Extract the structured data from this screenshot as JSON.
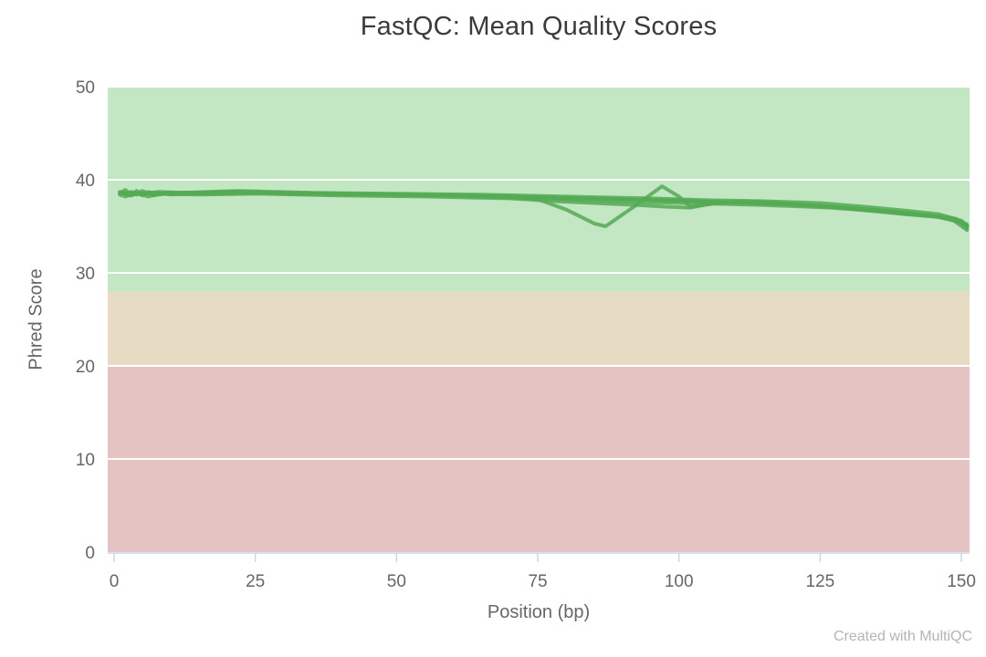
{
  "chart_data": {
    "type": "line",
    "title": "FastQC: Mean Quality Scores",
    "xlabel": "Position (bp)",
    "ylabel": "Phred Score",
    "xlim": [
      0,
      151.5
    ],
    "ylim": [
      0,
      50
    ],
    "xticks": [
      0,
      25,
      50,
      75,
      100,
      125,
      150
    ],
    "yticks": [
      0,
      10,
      20,
      30,
      40,
      50
    ],
    "grid": "horizontal-white",
    "legend": "none",
    "bands": [
      {
        "from": 0,
        "to": 20,
        "color": "#e6c3c3",
        "meaning": "fail"
      },
      {
        "from": 20,
        "to": 28,
        "color": "#e6dcc3",
        "meaning": "warn"
      },
      {
        "from": 28,
        "to": 50,
        "color": "#c3e6c3",
        "meaning": "pass"
      }
    ],
    "line_color": "#55aa55",
    "axis_color": "#ccd6eb",
    "series": [
      {
        "points": [
          [
            1,
            38.6
          ],
          [
            2,
            38.9
          ],
          [
            3,
            38.3
          ],
          [
            4,
            38.8
          ],
          [
            5,
            38.3
          ],
          [
            6,
            38.7
          ],
          [
            8,
            38.4
          ],
          [
            10,
            38.6
          ],
          [
            15,
            38.6
          ],
          [
            22,
            38.7
          ],
          [
            30,
            38.5
          ],
          [
            40,
            38.5
          ],
          [
            50,
            38.4
          ],
          [
            60,
            38.3
          ],
          [
            70,
            38.2
          ],
          [
            75,
            37.9
          ],
          [
            80,
            36.8
          ],
          [
            85,
            35.3
          ],
          [
            87,
            35.0
          ],
          [
            92,
            37.1
          ],
          [
            97,
            39.3
          ],
          [
            100,
            38.2
          ],
          [
            102,
            37.1
          ],
          [
            107,
            37.5
          ],
          [
            112,
            37.7
          ],
          [
            120,
            37.4
          ],
          [
            130,
            36.9
          ],
          [
            140,
            36.3
          ],
          [
            146,
            36.0
          ],
          [
            149,
            35.8
          ],
          [
            151,
            34.8
          ]
        ]
      },
      {
        "points": [
          [
            1,
            38.5
          ],
          [
            3,
            38.7
          ],
          [
            5,
            38.5
          ],
          [
            8,
            38.7
          ],
          [
            12,
            38.6
          ],
          [
            22,
            38.8
          ],
          [
            35,
            38.6
          ],
          [
            50,
            38.5
          ],
          [
            65,
            38.4
          ],
          [
            80,
            38.2
          ],
          [
            95,
            38.0
          ],
          [
            105,
            37.8
          ],
          [
            115,
            37.7
          ],
          [
            125,
            37.5
          ],
          [
            133,
            37.1
          ],
          [
            140,
            36.7
          ],
          [
            146,
            36.3
          ],
          [
            150,
            35.6
          ],
          [
            151,
            35.1
          ]
        ]
      },
      {
        "points": [
          [
            1,
            38.4
          ],
          [
            2,
            38.2
          ],
          [
            4,
            38.6
          ],
          [
            6,
            38.2
          ],
          [
            8,
            38.5
          ],
          [
            15,
            38.4
          ],
          [
            25,
            38.5
          ],
          [
            40,
            38.3
          ],
          [
            55,
            38.2
          ],
          [
            70,
            38.0
          ],
          [
            78,
            37.7
          ],
          [
            85,
            37.5
          ],
          [
            92,
            37.3
          ],
          [
            98,
            37.1
          ],
          [
            102,
            37.0
          ],
          [
            107,
            37.6
          ],
          [
            115,
            37.5
          ],
          [
            125,
            37.2
          ],
          [
            135,
            36.7
          ],
          [
            143,
            36.2
          ],
          [
            148,
            35.9
          ],
          [
            151,
            34.6
          ]
        ]
      },
      {
        "points": [
          [
            1,
            38.7
          ],
          [
            3,
            38.3
          ],
          [
            5,
            38.8
          ],
          [
            7,
            38.3
          ],
          [
            9,
            38.6
          ],
          [
            13,
            38.6
          ],
          [
            21,
            38.7
          ],
          [
            33,
            38.5
          ],
          [
            47,
            38.4
          ],
          [
            62,
            38.3
          ],
          [
            76,
            38.1
          ],
          [
            90,
            37.9
          ],
          [
            104,
            37.7
          ],
          [
            118,
            37.4
          ],
          [
            132,
            36.9
          ],
          [
            144,
            36.2
          ],
          [
            149,
            35.8
          ],
          [
            151,
            35.0
          ]
        ]
      },
      {
        "points": [
          [
            2,
            38.5
          ],
          [
            4,
            38.4
          ],
          [
            7,
            38.6
          ],
          [
            10,
            38.4
          ],
          [
            14,
            38.5
          ],
          [
            28,
            38.6
          ],
          [
            45,
            38.4
          ],
          [
            60,
            38.3
          ],
          [
            75,
            38.0
          ],
          [
            88,
            37.7
          ],
          [
            101,
            37.5
          ],
          [
            114,
            37.3
          ],
          [
            127,
            37.0
          ],
          [
            138,
            36.5
          ],
          [
            146,
            36.0
          ],
          [
            150,
            35.4
          ],
          [
            151,
            34.9
          ]
        ]
      },
      {
        "points": [
          [
            1,
            38.6
          ],
          [
            5,
            38.5
          ],
          [
            11,
            38.6
          ],
          [
            24,
            38.7
          ],
          [
            38,
            38.5
          ],
          [
            52,
            38.4
          ],
          [
            68,
            38.2
          ],
          [
            82,
            38.0
          ],
          [
            96,
            37.8
          ],
          [
            108,
            37.6
          ],
          [
            122,
            37.3
          ],
          [
            134,
            36.8
          ],
          [
            145,
            36.1
          ],
          [
            150,
            35.5
          ],
          [
            151,
            35.2
          ]
        ]
      }
    ]
  },
  "footer": {
    "credit": "Created with MultiQC"
  }
}
